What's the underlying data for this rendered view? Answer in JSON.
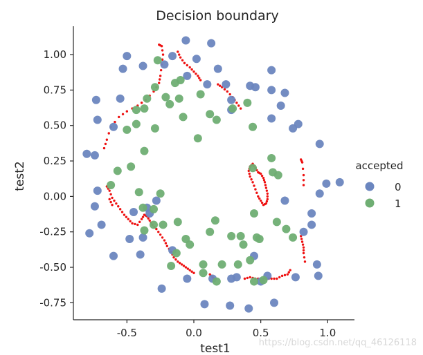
{
  "chart_data": {
    "type": "scatter",
    "title": "Decision boundary",
    "xlabel": "test1",
    "ylabel": "test2",
    "xlim": [
      -0.9,
      1.2
    ],
    "ylim": [
      -0.87,
      1.2
    ],
    "xticks": [
      "-0.5",
      "0.0",
      "0.5",
      "1.0"
    ],
    "xtick_values": [
      -0.5,
      0.0,
      0.5,
      1.0
    ],
    "yticks": [
      "-0.75",
      "-0.50",
      "-0.25",
      "0.00",
      "0.25",
      "0.50",
      "0.75",
      "1.00"
    ],
    "ytick_values": [
      -0.75,
      -0.5,
      -0.25,
      0.0,
      0.25,
      0.5,
      0.75,
      1.0
    ],
    "legend": {
      "title": "accepted",
      "entries": [
        "0",
        "1"
      ],
      "placement": "right"
    },
    "colors": {
      "0": "#6b86bf",
      "1": "#6fae73",
      "boundary": "#ee1111"
    },
    "series": [
      {
        "name": "0",
        "points": [
          [
            -0.06,
            1.1
          ],
          [
            0.13,
            1.08
          ],
          [
            -0.16,
            0.99
          ],
          [
            -0.5,
            0.99
          ],
          [
            0.02,
            0.97
          ],
          [
            -0.38,
            0.92
          ],
          [
            -0.53,
            0.9
          ],
          [
            -0.22,
            0.93
          ],
          [
            -0.05,
            0.85
          ],
          [
            0.18,
            0.9
          ],
          [
            0.58,
            0.89
          ],
          [
            0.42,
            0.78
          ],
          [
            0.24,
            0.79
          ],
          [
            0.46,
            0.77
          ],
          [
            0.1,
            0.79
          ],
          [
            0.58,
            0.75
          ],
          [
            -0.73,
            0.68
          ],
          [
            -0.55,
            0.69
          ],
          [
            0.28,
            0.68
          ],
          [
            0.68,
            0.73
          ],
          [
            0.65,
            0.64
          ],
          [
            0.28,
            0.61
          ],
          [
            -0.6,
            0.49
          ],
          [
            0.58,
            0.55
          ],
          [
            -0.72,
            0.54
          ],
          [
            0.78,
            0.51
          ],
          [
            0.74,
            0.48
          ],
          [
            -0.8,
            0.3
          ],
          [
            -0.74,
            0.29
          ],
          [
            0.94,
            0.37
          ],
          [
            0.99,
            0.09
          ],
          [
            1.09,
            0.1
          ],
          [
            0.94,
            0.02
          ],
          [
            -0.72,
            0.04
          ],
          [
            0.68,
            -0.03
          ],
          [
            -0.74,
            -0.07
          ],
          [
            -0.45,
            -0.11
          ],
          [
            -0.35,
            -0.08
          ],
          [
            -0.28,
            -0.03
          ],
          [
            -0.33,
            -0.12
          ],
          [
            -0.69,
            -0.2
          ],
          [
            -0.78,
            -0.26
          ],
          [
            0.88,
            -0.12
          ],
          [
            0.88,
            -0.2
          ],
          [
            0.82,
            -0.25
          ],
          [
            -0.48,
            -0.3
          ],
          [
            -0.38,
            -0.29
          ],
          [
            -0.4,
            -0.41
          ],
          [
            -0.6,
            -0.42
          ],
          [
            0.45,
            -0.42
          ],
          [
            -0.16,
            -0.38
          ],
          [
            -0.05,
            -0.58
          ],
          [
            0.14,
            -0.58
          ],
          [
            0.28,
            -0.58
          ],
          [
            0.32,
            -0.57
          ],
          [
            0.55,
            -0.56
          ],
          [
            0.76,
            -0.57
          ],
          [
            0.93,
            -0.56
          ],
          [
            0.92,
            -0.48
          ],
          [
            -0.24,
            -0.65
          ],
          [
            0.5,
            -0.6
          ],
          [
            0.6,
            -0.75
          ],
          [
            0.08,
            -0.76
          ],
          [
            0.27,
            -0.77
          ],
          [
            0.41,
            -0.79
          ]
        ]
      },
      {
        "name": "1",
        "points": [
          [
            -0.27,
            0.96
          ],
          [
            -0.1,
            0.82
          ],
          [
            -0.14,
            0.8
          ],
          [
            -0.29,
            0.77
          ],
          [
            -0.21,
            0.7
          ],
          [
            -0.35,
            0.69
          ],
          [
            -0.11,
            0.69
          ],
          [
            0.05,
            0.72
          ],
          [
            -0.18,
            0.65
          ],
          [
            0.29,
            0.62
          ],
          [
            0.4,
            0.66
          ],
          [
            -0.37,
            0.62
          ],
          [
            -0.43,
            0.61
          ],
          [
            0.12,
            0.58
          ],
          [
            0.17,
            0.54
          ],
          [
            -0.08,
            0.56
          ],
          [
            -0.43,
            0.51
          ],
          [
            -0.5,
            0.47
          ],
          [
            0.44,
            0.49
          ],
          [
            -0.29,
            0.48
          ],
          [
            0.03,
            0.41
          ],
          [
            -0.37,
            0.32
          ],
          [
            0.58,
            0.27
          ],
          [
            0.59,
            0.17
          ],
          [
            -0.57,
            0.18
          ],
          [
            -0.47,
            0.21
          ],
          [
            0.44,
            0.2
          ],
          [
            0.63,
            0.15
          ],
          [
            -0.62,
            0.08
          ],
          [
            -0.41,
            0.03
          ],
          [
            -0.25,
            0.02
          ],
          [
            -0.38,
            -0.08
          ],
          [
            -0.3,
            -0.09
          ],
          [
            0.45,
            -0.12
          ],
          [
            0.62,
            -0.18
          ],
          [
            0.69,
            -0.23
          ],
          [
            -0.3,
            -0.2
          ],
          [
            -0.23,
            -0.2
          ],
          [
            0.16,
            -0.17
          ],
          [
            -0.12,
            -0.18
          ],
          [
            -0.37,
            -0.24
          ],
          [
            0.12,
            -0.25
          ],
          [
            0.35,
            -0.28
          ],
          [
            -0.06,
            -0.3
          ],
          [
            0.47,
            -0.29
          ],
          [
            0.49,
            -0.3
          ],
          [
            0.37,
            -0.34
          ],
          [
            -0.13,
            -0.4
          ],
          [
            0.42,
            -0.45
          ],
          [
            0.33,
            -0.48
          ],
          [
            -0.17,
            -0.49
          ],
          [
            0.07,
            -0.48
          ],
          [
            0.21,
            -0.48
          ],
          [
            0.07,
            -0.54
          ],
          [
            0.17,
            -0.6
          ],
          [
            0.45,
            -0.6
          ],
          [
            0.52,
            -0.59
          ],
          [
            0.28,
            -0.28
          ],
          [
            -0.03,
            -0.34
          ],
          [
            0.74,
            -0.29
          ]
        ]
      }
    ],
    "boundary_curves": [
      [
        [
          -0.26,
          1.07
        ],
        [
          -0.24,
          1.06
        ],
        [
          -0.23,
          1.0
        ],
        [
          -0.24,
          0.93
        ],
        [
          -0.25,
          0.85
        ],
        [
          -0.26,
          0.8
        ],
        [
          -0.3,
          0.74
        ],
        [
          -0.36,
          0.68
        ],
        [
          -0.42,
          0.64
        ],
        [
          -0.5,
          0.6
        ],
        [
          -0.56,
          0.56
        ],
        [
          -0.62,
          0.49
        ],
        [
          -0.65,
          0.4
        ],
        [
          -0.67,
          0.34
        ]
      ],
      [
        [
          -0.12,
          1.02
        ],
        [
          -0.1,
          0.98
        ],
        [
          -0.07,
          0.94
        ],
        [
          -0.03,
          0.91
        ],
        [
          0.0,
          0.88
        ],
        [
          0.03,
          0.85
        ],
        [
          0.05,
          0.82
        ]
      ],
      [
        [
          0.18,
          0.79
        ],
        [
          0.21,
          0.77
        ],
        [
          0.25,
          0.74
        ],
        [
          0.29,
          0.7
        ],
        [
          0.32,
          0.66
        ],
        [
          0.35,
          0.62
        ]
      ],
      [
        [
          0.42,
          0.21
        ],
        [
          0.44,
          0.23
        ],
        [
          0.46,
          0.2
        ],
        [
          0.48,
          0.17
        ],
        [
          0.5,
          0.16
        ],
        [
          0.52,
          0.13
        ],
        [
          0.53,
          0.1
        ],
        [
          0.54,
          0.06
        ],
        [
          0.55,
          0.02
        ],
        [
          0.55,
          -0.02
        ],
        [
          0.54,
          -0.05
        ],
        [
          0.52,
          -0.06
        ],
        [
          0.5,
          -0.03
        ],
        [
          0.48,
          0.0
        ],
        [
          0.46,
          0.05
        ],
        [
          0.44,
          0.1
        ],
        [
          0.42,
          0.14
        ],
        [
          0.41,
          0.18
        ],
        [
          0.42,
          0.21
        ]
      ],
      [
        [
          0.8,
          0.26
        ],
        [
          0.81,
          0.24
        ],
        [
          0.82,
          0.15
        ],
        [
          0.82,
          0.08
        ]
      ],
      [
        [
          0.8,
          -0.28
        ],
        [
          0.81,
          -0.32
        ],
        [
          0.82,
          -0.36
        ],
        [
          0.82,
          -0.4
        ],
        [
          0.83,
          -0.46
        ]
      ],
      [
        [
          0.38,
          -0.58
        ],
        [
          0.42,
          -0.57
        ],
        [
          0.46,
          -0.58
        ],
        [
          0.5,
          -0.58
        ],
        [
          0.54,
          -0.58
        ],
        [
          0.58,
          -0.58
        ],
        [
          0.62,
          -0.58
        ],
        [
          0.66,
          -0.56
        ],
        [
          0.7,
          -0.55
        ],
        [
          0.72,
          -0.52
        ]
      ],
      [
        [
          0.12,
          -0.55
        ],
        [
          0.14,
          -0.57
        ],
        [
          0.15,
          -0.58
        ]
      ],
      [
        [
          -0.65,
          0.07
        ],
        [
          -0.63,
          0.04
        ],
        [
          -0.61,
          -0.01
        ],
        [
          -0.58,
          -0.05
        ],
        [
          -0.55,
          -0.09
        ],
        [
          -0.52,
          -0.13
        ],
        [
          -0.49,
          -0.16
        ],
        [
          -0.46,
          -0.19
        ],
        [
          -0.42,
          -0.2
        ],
        [
          -0.39,
          -0.16
        ],
        [
          -0.37,
          -0.13
        ],
        [
          -0.35,
          -0.14
        ],
        [
          -0.33,
          -0.17
        ],
        [
          -0.31,
          -0.2
        ],
        [
          -0.28,
          -0.23
        ],
        [
          -0.25,
          -0.27
        ],
        [
          -0.22,
          -0.31
        ],
        [
          -0.2,
          -0.35
        ],
        [
          -0.17,
          -0.39
        ],
        [
          -0.15,
          -0.43
        ],
        [
          -0.12,
          -0.46
        ],
        [
          -0.09,
          -0.48
        ],
        [
          -0.06,
          -0.5
        ],
        [
          -0.03,
          -0.52
        ],
        [
          0.0,
          -0.54
        ]
      ],
      [
        [
          -0.63,
          -0.02
        ],
        [
          -0.61,
          -0.06
        ]
      ]
    ]
  },
  "watermark": "https://blog.csdn.net/qq_46126118"
}
